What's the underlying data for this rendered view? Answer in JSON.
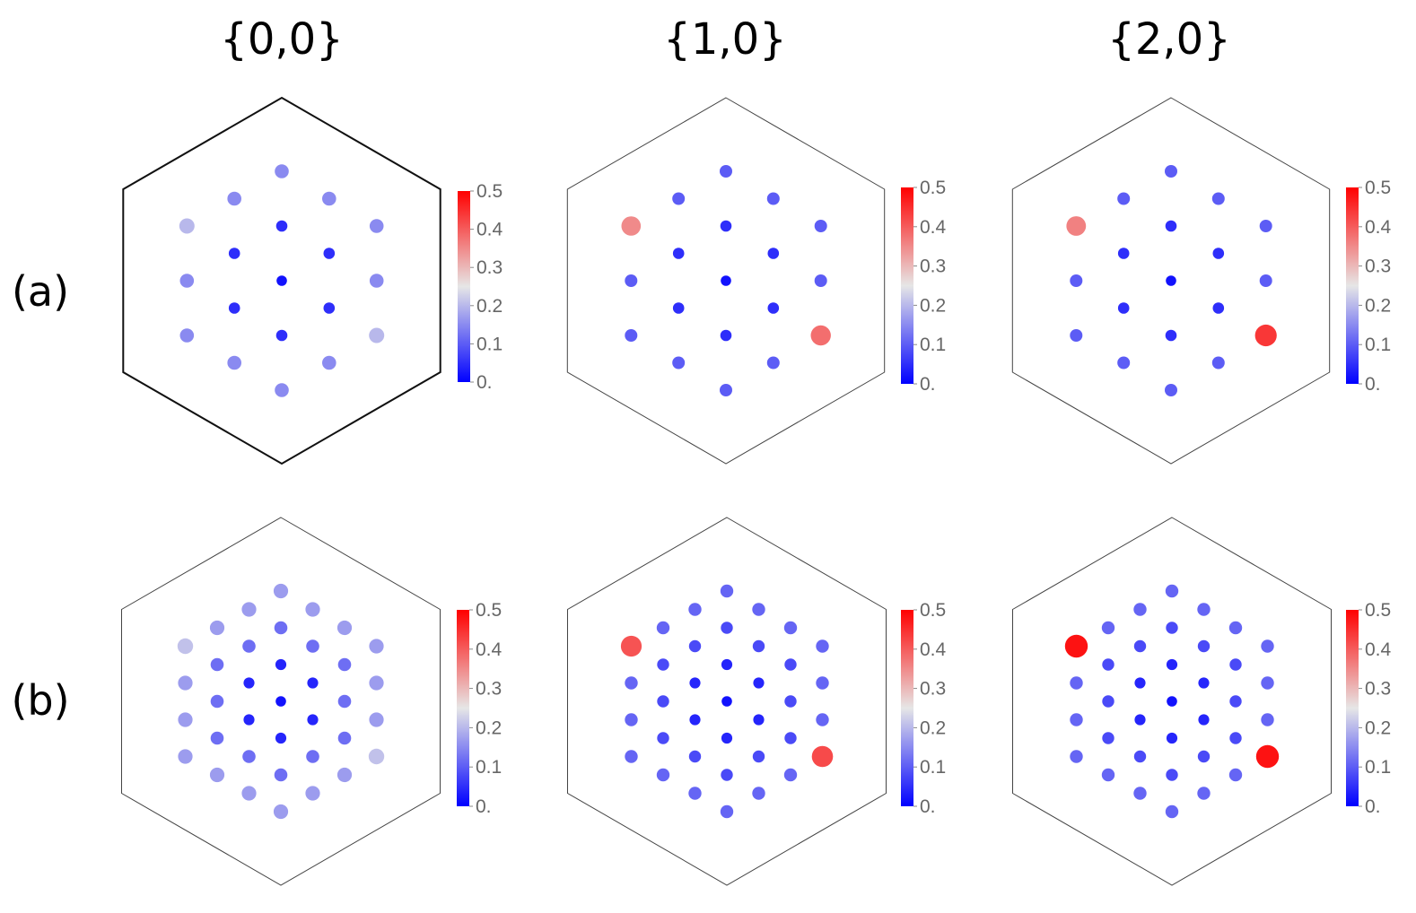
{
  "column_titles": [
    "{0,0}",
    "{1,0}",
    "{2,0}"
  ],
  "row_labels": [
    "(a)",
    "(b)"
  ],
  "colorbar": {
    "ticks": [
      "0.",
      "0.1",
      "0.2",
      "0.3",
      "0.4",
      "0.5"
    ],
    "range": [
      0,
      0.5
    ],
    "colors": {
      "low": "#0000ff",
      "mid": "#e6e6e6",
      "high": "#ff0000"
    }
  },
  "chart_data": [
    {
      "type": "scatter",
      "row": "(a)",
      "title": "{0,0}",
      "clim": [
        0,
        0.5
      ],
      "points": [
        {
          "x": 0,
          "y": 0,
          "value": 0.02
        },
        {
          "x": 1,
          "y": 0,
          "value": 0.05
        },
        {
          "x": 0,
          "y": 1,
          "value": 0.05
        },
        {
          "x": -1,
          "y": 1,
          "value": 0.05
        },
        {
          "x": -1,
          "y": 0,
          "value": 0.05
        },
        {
          "x": 0,
          "y": -1,
          "value": 0.05
        },
        {
          "x": 1,
          "y": -1,
          "value": 0.05
        },
        {
          "x": 2,
          "y": 0,
          "value": 0.15
        },
        {
          "x": 1,
          "y": 1,
          "value": 0.15
        },
        {
          "x": 0,
          "y": 2,
          "value": 0.15
        },
        {
          "x": -1,
          "y": 2,
          "value": 0.15
        },
        {
          "x": -2,
          "y": 2,
          "value": 0.2
        },
        {
          "x": -2,
          "y": 1,
          "value": 0.15
        },
        {
          "x": -2,
          "y": 0,
          "value": 0.15
        },
        {
          "x": -1,
          "y": -1,
          "value": 0.15
        },
        {
          "x": 0,
          "y": -2,
          "value": 0.15
        },
        {
          "x": 1,
          "y": -2,
          "value": 0.15
        },
        {
          "x": 2,
          "y": -2,
          "value": 0.2
        },
        {
          "x": 2,
          "y": -1,
          "value": 0.15
        }
      ]
    },
    {
      "type": "scatter",
      "row": "(a)",
      "title": "{1,0}",
      "clim": [
        0,
        0.5
      ],
      "points": [
        {
          "x": 0,
          "y": 0,
          "value": 0.02
        },
        {
          "x": 1,
          "y": 0,
          "value": 0.05
        },
        {
          "x": 0,
          "y": 1,
          "value": 0.05
        },
        {
          "x": -1,
          "y": 1,
          "value": 0.05
        },
        {
          "x": -1,
          "y": 0,
          "value": 0.05
        },
        {
          "x": 0,
          "y": -1,
          "value": 0.05
        },
        {
          "x": 1,
          "y": -1,
          "value": 0.05
        },
        {
          "x": 2,
          "y": 0,
          "value": 0.1
        },
        {
          "x": 1,
          "y": 1,
          "value": 0.1
        },
        {
          "x": 0,
          "y": 2,
          "value": 0.1
        },
        {
          "x": -1,
          "y": 2,
          "value": 0.1
        },
        {
          "x": -2,
          "y": 2,
          "value": 0.35
        },
        {
          "x": -2,
          "y": 1,
          "value": 0.1
        },
        {
          "x": -2,
          "y": 0,
          "value": 0.1
        },
        {
          "x": -1,
          "y": -1,
          "value": 0.1
        },
        {
          "x": 0,
          "y": -2,
          "value": 0.1
        },
        {
          "x": 1,
          "y": -2,
          "value": 0.1
        },
        {
          "x": 2,
          "y": -2,
          "value": 0.38
        },
        {
          "x": 2,
          "y": -1,
          "value": 0.1
        }
      ]
    },
    {
      "type": "scatter",
      "row": "(a)",
      "title": "{2,0}",
      "clim": [
        0,
        0.5
      ],
      "points": [
        {
          "x": 0,
          "y": 0,
          "value": 0.02
        },
        {
          "x": 1,
          "y": 0,
          "value": 0.05
        },
        {
          "x": 0,
          "y": 1,
          "value": 0.05
        },
        {
          "x": -1,
          "y": 1,
          "value": 0.05
        },
        {
          "x": -1,
          "y": 0,
          "value": 0.05
        },
        {
          "x": 0,
          "y": -1,
          "value": 0.05
        },
        {
          "x": 1,
          "y": -1,
          "value": 0.05
        },
        {
          "x": 2,
          "y": 0,
          "value": 0.1
        },
        {
          "x": 1,
          "y": 1,
          "value": 0.1
        },
        {
          "x": 0,
          "y": 2,
          "value": 0.1
        },
        {
          "x": -1,
          "y": 2,
          "value": 0.1
        },
        {
          "x": -2,
          "y": 2,
          "value": 0.36
        },
        {
          "x": -2,
          "y": 1,
          "value": 0.1
        },
        {
          "x": -2,
          "y": 0,
          "value": 0.1
        },
        {
          "x": -1,
          "y": -1,
          "value": 0.1
        },
        {
          "x": 0,
          "y": -2,
          "value": 0.1
        },
        {
          "x": 1,
          "y": -2,
          "value": 0.1
        },
        {
          "x": 2,
          "y": -2,
          "value": 0.44
        },
        {
          "x": 2,
          "y": -1,
          "value": 0.1
        }
      ]
    },
    {
      "type": "scatter",
      "row": "(b)",
      "title": "{0,0}",
      "clim": [
        0,
        0.5
      ],
      "points": [
        {
          "x": 0,
          "y": 0,
          "value": 0.02
        },
        {
          "x": 1,
          "y": 0,
          "value": 0.04
        },
        {
          "x": 0,
          "y": 1,
          "value": 0.04
        },
        {
          "x": -1,
          "y": 1,
          "value": 0.04
        },
        {
          "x": -1,
          "y": 0,
          "value": 0.04
        },
        {
          "x": 0,
          "y": -1,
          "value": 0.04
        },
        {
          "x": 1,
          "y": -1,
          "value": 0.04
        },
        {
          "x": 2,
          "y": 0,
          "value": 0.12
        },
        {
          "x": 1,
          "y": 1,
          "value": 0.12
        },
        {
          "x": 0,
          "y": 2,
          "value": 0.12
        },
        {
          "x": -1,
          "y": 2,
          "value": 0.12
        },
        {
          "x": -2,
          "y": 2,
          "value": 0.12
        },
        {
          "x": -2,
          "y": 1,
          "value": 0.12
        },
        {
          "x": -2,
          "y": 0,
          "value": 0.12
        },
        {
          "x": -1,
          "y": -1,
          "value": 0.12
        },
        {
          "x": 0,
          "y": -2,
          "value": 0.12
        },
        {
          "x": 1,
          "y": -2,
          "value": 0.12
        },
        {
          "x": 2,
          "y": -2,
          "value": 0.12
        },
        {
          "x": 2,
          "y": -1,
          "value": 0.12
        },
        {
          "x": 3,
          "y": 0,
          "value": 0.17
        },
        {
          "x": 2,
          "y": 1,
          "value": 0.17
        },
        {
          "x": 1,
          "y": 2,
          "value": 0.17
        },
        {
          "x": 0,
          "y": 3,
          "value": 0.17
        },
        {
          "x": -1,
          "y": 3,
          "value": 0.17
        },
        {
          "x": -2,
          "y": 3,
          "value": 0.17
        },
        {
          "x": -3,
          "y": 3,
          "value": 0.21
        },
        {
          "x": -3,
          "y": 2,
          "value": 0.17
        },
        {
          "x": -3,
          "y": 1,
          "value": 0.17
        },
        {
          "x": -3,
          "y": 0,
          "value": 0.17
        },
        {
          "x": -2,
          "y": -1,
          "value": 0.17
        },
        {
          "x": -1,
          "y": -2,
          "value": 0.17
        },
        {
          "x": 0,
          "y": -3,
          "value": 0.17
        },
        {
          "x": 1,
          "y": -3,
          "value": 0.17
        },
        {
          "x": 2,
          "y": -3,
          "value": 0.17
        },
        {
          "x": 3,
          "y": -3,
          "value": 0.21
        },
        {
          "x": 3,
          "y": -2,
          "value": 0.17
        },
        {
          "x": 3,
          "y": -1,
          "value": 0.17
        }
      ]
    },
    {
      "type": "scatter",
      "row": "(b)",
      "title": "{1,0}",
      "clim": [
        0,
        0.5
      ],
      "points": [
        {
          "x": 0,
          "y": 0,
          "value": 0.02
        },
        {
          "x": 1,
          "y": 0,
          "value": 0.04
        },
        {
          "x": 0,
          "y": 1,
          "value": 0.04
        },
        {
          "x": -1,
          "y": 1,
          "value": 0.04
        },
        {
          "x": -1,
          "y": 0,
          "value": 0.04
        },
        {
          "x": 0,
          "y": -1,
          "value": 0.04
        },
        {
          "x": 1,
          "y": -1,
          "value": 0.04
        },
        {
          "x": 2,
          "y": 0,
          "value": 0.08
        },
        {
          "x": 1,
          "y": 1,
          "value": 0.08
        },
        {
          "x": 0,
          "y": 2,
          "value": 0.08
        },
        {
          "x": -1,
          "y": 2,
          "value": 0.08
        },
        {
          "x": -2,
          "y": 2,
          "value": 0.08
        },
        {
          "x": -2,
          "y": 1,
          "value": 0.08
        },
        {
          "x": -2,
          "y": 0,
          "value": 0.08
        },
        {
          "x": -1,
          "y": -1,
          "value": 0.08
        },
        {
          "x": 0,
          "y": -2,
          "value": 0.08
        },
        {
          "x": 1,
          "y": -2,
          "value": 0.08
        },
        {
          "x": 2,
          "y": -2,
          "value": 0.08
        },
        {
          "x": 2,
          "y": -1,
          "value": 0.08
        },
        {
          "x": 3,
          "y": 0,
          "value": 0.11
        },
        {
          "x": 2,
          "y": 1,
          "value": 0.11
        },
        {
          "x": 1,
          "y": 2,
          "value": 0.11
        },
        {
          "x": 0,
          "y": 3,
          "value": 0.11
        },
        {
          "x": -1,
          "y": 3,
          "value": 0.11
        },
        {
          "x": -2,
          "y": 3,
          "value": 0.11
        },
        {
          "x": -3,
          "y": 3,
          "value": 0.41
        },
        {
          "x": -3,
          "y": 2,
          "value": 0.11
        },
        {
          "x": -3,
          "y": 1,
          "value": 0.11
        },
        {
          "x": -3,
          "y": 0,
          "value": 0.11
        },
        {
          "x": -2,
          "y": -1,
          "value": 0.11
        },
        {
          "x": -1,
          "y": -2,
          "value": 0.11
        },
        {
          "x": 0,
          "y": -3,
          "value": 0.11
        },
        {
          "x": 1,
          "y": -3,
          "value": 0.11
        },
        {
          "x": 2,
          "y": -3,
          "value": 0.11
        },
        {
          "x": 3,
          "y": -3,
          "value": 0.42
        },
        {
          "x": 3,
          "y": -2,
          "value": 0.11
        },
        {
          "x": 3,
          "y": -1,
          "value": 0.11
        }
      ]
    },
    {
      "type": "scatter",
      "row": "(b)",
      "title": "{2,0}",
      "clim": [
        0,
        0.5
      ],
      "points": [
        {
          "x": 0,
          "y": 0,
          "value": 0.02
        },
        {
          "x": 1,
          "y": 0,
          "value": 0.04
        },
        {
          "x": 0,
          "y": 1,
          "value": 0.04
        },
        {
          "x": -1,
          "y": 1,
          "value": 0.04
        },
        {
          "x": -1,
          "y": 0,
          "value": 0.04
        },
        {
          "x": 0,
          "y": -1,
          "value": 0.04
        },
        {
          "x": 1,
          "y": -1,
          "value": 0.04
        },
        {
          "x": 2,
          "y": 0,
          "value": 0.08
        },
        {
          "x": 1,
          "y": 1,
          "value": 0.08
        },
        {
          "x": 0,
          "y": 2,
          "value": 0.08
        },
        {
          "x": -1,
          "y": 2,
          "value": 0.08
        },
        {
          "x": -2,
          "y": 2,
          "value": 0.08
        },
        {
          "x": -2,
          "y": 1,
          "value": 0.08
        },
        {
          "x": -2,
          "y": 0,
          "value": 0.08
        },
        {
          "x": -1,
          "y": -1,
          "value": 0.08
        },
        {
          "x": 0,
          "y": -2,
          "value": 0.08
        },
        {
          "x": 1,
          "y": -2,
          "value": 0.08
        },
        {
          "x": 2,
          "y": -2,
          "value": 0.08
        },
        {
          "x": 2,
          "y": -1,
          "value": 0.08
        },
        {
          "x": 3,
          "y": 0,
          "value": 0.11
        },
        {
          "x": 2,
          "y": 1,
          "value": 0.11
        },
        {
          "x": 1,
          "y": 2,
          "value": 0.11
        },
        {
          "x": 0,
          "y": 3,
          "value": 0.11
        },
        {
          "x": -1,
          "y": 3,
          "value": 0.11
        },
        {
          "x": -2,
          "y": 3,
          "value": 0.11
        },
        {
          "x": -3,
          "y": 3,
          "value": 0.48
        },
        {
          "x": -3,
          "y": 2,
          "value": 0.11
        },
        {
          "x": -3,
          "y": 1,
          "value": 0.11
        },
        {
          "x": -3,
          "y": 0,
          "value": 0.11
        },
        {
          "x": -2,
          "y": -1,
          "value": 0.11
        },
        {
          "x": -1,
          "y": -2,
          "value": 0.11
        },
        {
          "x": 0,
          "y": -3,
          "value": 0.11
        },
        {
          "x": 1,
          "y": -3,
          "value": 0.11
        },
        {
          "x": 2,
          "y": -3,
          "value": 0.11
        },
        {
          "x": 3,
          "y": -3,
          "value": 0.48
        },
        {
          "x": 3,
          "y": -2,
          "value": 0.11
        },
        {
          "x": 3,
          "y": -1,
          "value": 0.11
        }
      ]
    }
  ]
}
